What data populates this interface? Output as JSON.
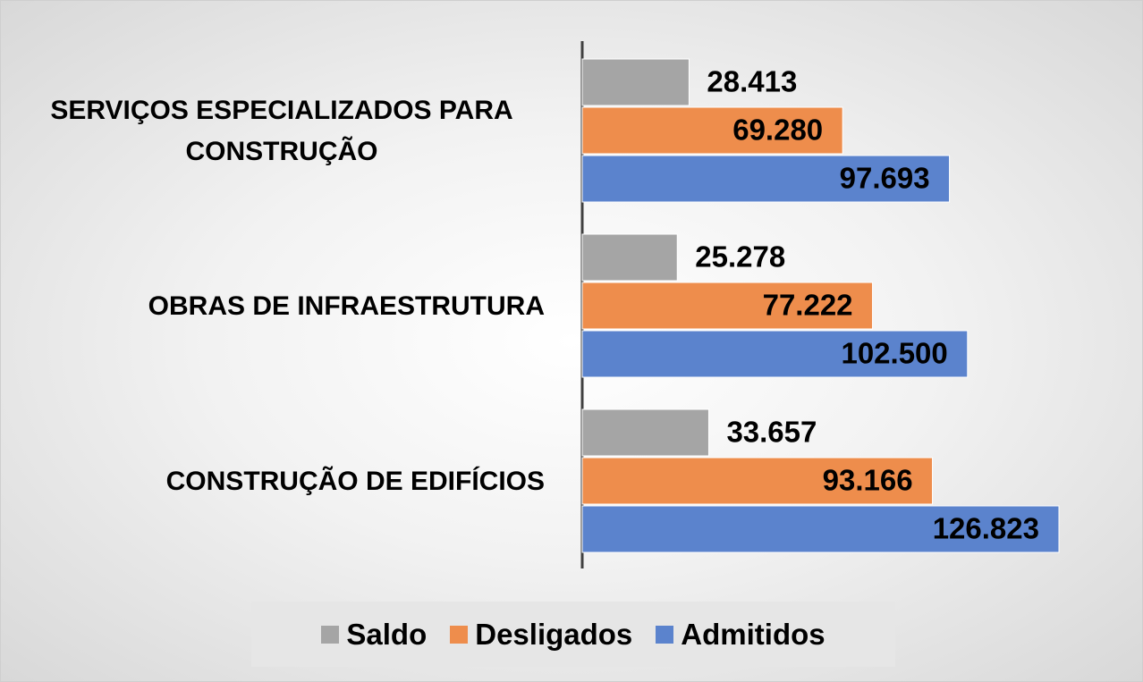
{
  "chart_data": {
    "type": "bar",
    "orientation": "horizontal",
    "categories": [
      "SERVIÇOS ESPECIALIZADOS PARA CONSTRUÇÃO",
      "OBRAS DE INFRAESTRUTURA",
      "CONSTRUÇÃO DE EDIFÍCIOS"
    ],
    "series": [
      {
        "name": "Saldo",
        "color": "#a5a5a5",
        "values": [
          28413,
          25278,
          33657
        ],
        "value_labels": [
          "28.413",
          "25.278",
          "33.657"
        ]
      },
      {
        "name": "Desligados",
        "color": "#ee8d4c",
        "values": [
          69280,
          77222,
          93166
        ],
        "value_labels": [
          "69.280",
          "77.222",
          "93.166"
        ]
      },
      {
        "name": "Admitidos",
        "color": "#5b83cd",
        "values": [
          97693,
          102500,
          126823
        ],
        "value_labels": [
          "97.693",
          "102.500",
          "126.823"
        ]
      }
    ],
    "legend": "bottom"
  }
}
